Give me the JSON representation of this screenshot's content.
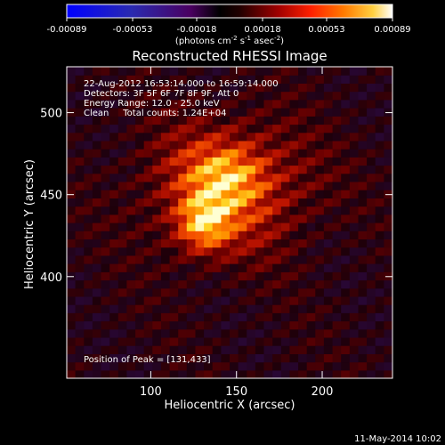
{
  "chart_data": {
    "type": "heatmap",
    "title": "Reconstructed RHESSI Image",
    "xlabel": "Heliocentric X (arcsec)",
    "ylabel": "Heliocentric Y (arcsec)",
    "xlim": [
      51,
      241
    ],
    "ylim": [
      338,
      528
    ],
    "xticks": [
      100,
      150,
      200
    ],
    "yticks": [
      400,
      450,
      500
    ],
    "colorbar": {
      "range": [
        -0.00089,
        0.00089
      ],
      "tick_values": [
        -0.00089,
        -0.00053,
        -0.00018,
        0.00018,
        0.00053,
        0.00089
      ],
      "tick_labels": [
        "-0.00089",
        "-0.00053",
        "-0.00018",
        "0.00018",
        "0.00053",
        "0.00089"
      ],
      "unit_label": "(photons cm",
      "unit_exp1": "-2",
      "unit_mid": " s",
      "unit_exp2": "-1",
      "unit_mid2": " asec",
      "unit_exp3": "-2",
      "unit_end": ")",
      "colors": [
        "#0000ff",
        "#2020c0",
        "#500060",
        "#000000",
        "#400000",
        "#a00000",
        "#ff2000",
        "#ff7000",
        "#ffc000",
        "#ffffff"
      ]
    },
    "annotations": {
      "line1": "22-Aug-2012 16:53:14.000 to 16:59:14.000",
      "line2": "Detectors: 3F 5F 6F 7F 8F 9F, Att 0",
      "line3": "Energy Range: 12.0 - 25.0 keV",
      "line4": "Clean     Total counts: 1.24E+04",
      "peak": "Position of Peak = [131,433]"
    },
    "peak": {
      "x": 131,
      "y": 433
    },
    "source_center": {
      "x": 145,
      "y": 455
    },
    "footer": "11-May-2014 10:02"
  }
}
